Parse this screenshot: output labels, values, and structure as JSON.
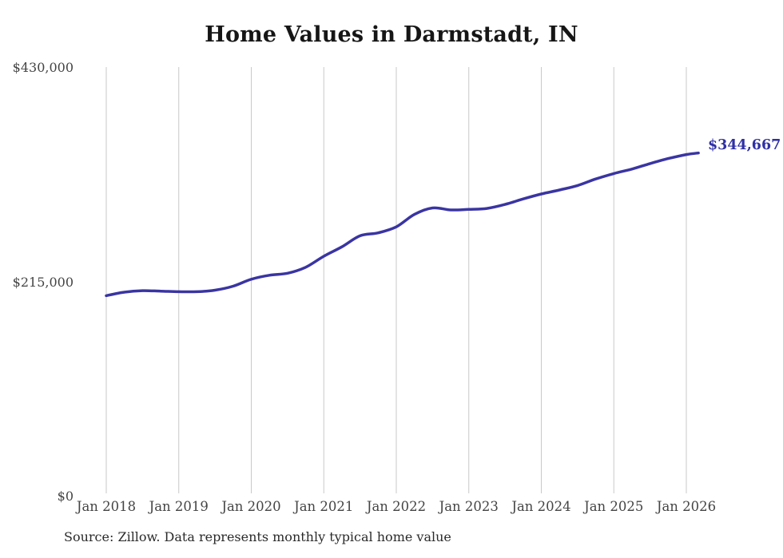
{
  "title": "Home Values in Darmstadt, IN",
  "end_label": "$344,667",
  "source_note": "Source: Zillow. Data represents monthly typical home value",
  "colors": {
    "line": "#3a35a2",
    "end_label": "#2f2fa6",
    "gridline": "#c9c9c9",
    "axis_label": "#444444",
    "title": "#161616",
    "source": "#2a2a2a",
    "background": "#ffffff"
  },
  "chart_data": {
    "type": "line",
    "title": "Home Values in Darmstadt, IN",
    "xlabel": "",
    "ylabel": "",
    "ylim": [
      0,
      430000
    ],
    "grid": "vertical-only",
    "legend": "none",
    "x_ticks": [
      "Jan 2018",
      "Jan 2019",
      "Jan 2020",
      "Jan 2021",
      "Jan 2022",
      "Jan 2023",
      "Jan 2024",
      "Jan 2025",
      "Jan 2026"
    ],
    "y_ticks": [
      {
        "label": "$430,000",
        "value": 430000
      },
      {
        "label": "$215,000",
        "value": 215000
      },
      {
        "label": "$0",
        "value": 0
      }
    ],
    "final_value": 344667,
    "series": [
      {
        "name": "Typical home value",
        "points": [
          {
            "date": "2018-01",
            "value": 201500
          },
          {
            "date": "2018-04",
            "value": 205000
          },
          {
            "date": "2018-07",
            "value": 206500
          },
          {
            "date": "2018-10",
            "value": 206000
          },
          {
            "date": "2019-01",
            "value": 205500
          },
          {
            "date": "2019-04",
            "value": 205500
          },
          {
            "date": "2019-07",
            "value": 207000
          },
          {
            "date": "2019-10",
            "value": 211000
          },
          {
            "date": "2020-01",
            "value": 218000
          },
          {
            "date": "2020-04",
            "value": 222000
          },
          {
            "date": "2020-07",
            "value": 224000
          },
          {
            "date": "2020-10",
            "value": 230000
          },
          {
            "date": "2021-01",
            "value": 241000
          },
          {
            "date": "2021-04",
            "value": 250500
          },
          {
            "date": "2021-07",
            "value": 261500
          },
          {
            "date": "2021-10",
            "value": 264500
          },
          {
            "date": "2022-01",
            "value": 270500
          },
          {
            "date": "2022-04",
            "value": 283000
          },
          {
            "date": "2022-07",
            "value": 289500
          },
          {
            "date": "2022-10",
            "value": 287500
          },
          {
            "date": "2023-01",
            "value": 288000
          },
          {
            "date": "2023-04",
            "value": 289000
          },
          {
            "date": "2023-07",
            "value": 293000
          },
          {
            "date": "2023-10",
            "value": 298500
          },
          {
            "date": "2024-01",
            "value": 303500
          },
          {
            "date": "2024-04",
            "value": 307500
          },
          {
            "date": "2024-07",
            "value": 312000
          },
          {
            "date": "2024-10",
            "value": 318500
          },
          {
            "date": "2025-01",
            "value": 324000
          },
          {
            "date": "2025-04",
            "value": 328500
          },
          {
            "date": "2025-07",
            "value": 334000
          },
          {
            "date": "2025-10",
            "value": 339000
          },
          {
            "date": "2026-01",
            "value": 343000
          },
          {
            "date": "2026-03",
            "value": 344667
          }
        ]
      }
    ]
  }
}
